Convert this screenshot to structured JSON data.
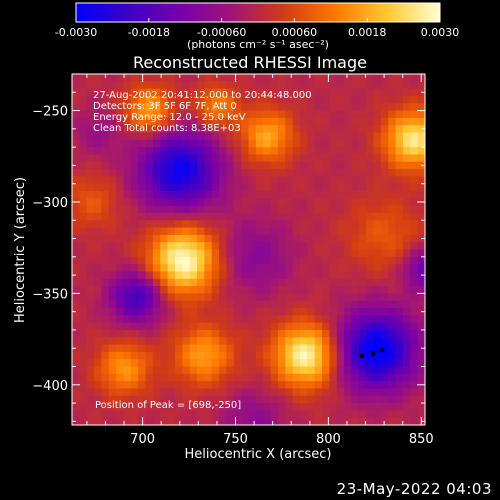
{
  "chart_data": {
    "type": "heatmap",
    "title": "Reconstructed RHESSI Image",
    "xlabel": "Heliocentric X (arcsec)",
    "ylabel": "Heliocentric Y (arcsec)",
    "xlim": [
      662,
      852
    ],
    "ylim": [
      -422,
      -230
    ],
    "x_ticks": [
      700,
      750,
      800,
      850
    ],
    "y_ticks": [
      -250,
      -300,
      -350,
      -400
    ],
    "colorbar": {
      "label": "(photons cm⁻² s⁻¹ asec⁻²)",
      "range": [
        -0.003,
        0.003
      ],
      "ticks": [
        "-0.0030",
        "-0.0018",
        "-0.00060",
        "0.00060",
        "0.0018",
        "0.0030"
      ],
      "colormap": [
        "#0000ff",
        "#3c00c8",
        "#7800aa",
        "#a01478",
        "#d23c14",
        "#ff7800",
        "#ffc832",
        "#ffffd2"
      ]
    },
    "annotations": [
      "27-Aug-2002 20:41:12.000 to 20:44:48.000",
      "Detectors: 3F 5F 6F 7F, Att 0",
      "Energy Range: 12.0 - 25.0 keV",
      "Clean     Total counts: 8.38E+03"
    ],
    "peak_label": "Position of Peak = [698,-250]",
    "peak": [
      698,
      -250
    ],
    "sources": [
      {
        "x": 722,
        "y": -332,
        "amp": 0.003,
        "sigma": 13
      },
      {
        "x": 788,
        "y": -384,
        "amp": 0.0029,
        "sigma": 12
      },
      {
        "x": 846,
        "y": -266,
        "amp": 0.0026,
        "sigma": 11
      },
      {
        "x": 767,
        "y": -264,
        "amp": 0.0018,
        "sigma": 10
      },
      {
        "x": 704,
        "y": -250,
        "amp": 0.0018,
        "sigma": 9
      },
      {
        "x": 690,
        "y": -391,
        "amp": 0.0016,
        "sigma": 10
      },
      {
        "x": 733,
        "y": -384,
        "amp": 0.0017,
        "sigma": 11
      },
      {
        "x": 740,
        "y": -248,
        "amp": 0.0014,
        "sigma": 8
      },
      {
        "x": 830,
        "y": -318,
        "amp": 0.0008,
        "sigma": 14
      },
      {
        "x": 673,
        "y": -300,
        "amp": 0.0008,
        "sigma": 10
      },
      {
        "x": 720,
        "y": -283,
        "amp": -0.0028,
        "sigma": 15
      },
      {
        "x": 826,
        "y": -381,
        "amp": -0.0031,
        "sigma": 15
      },
      {
        "x": 697,
        "y": -352,
        "amp": -0.0021,
        "sigma": 10
      },
      {
        "x": 852,
        "y": -337,
        "amp": -0.0016,
        "sigma": 8
      },
      {
        "x": 760,
        "y": -330,
        "amp": -0.0009,
        "sigma": 14
      },
      {
        "x": 760,
        "y": -420,
        "amp": -0.0008,
        "sigma": 12
      },
      {
        "x": 676,
        "y": -262,
        "amp": -0.0006,
        "sigma": 9
      }
    ],
    "markers": [
      [
        818,
        -384
      ],
      [
        824,
        -383
      ],
      [
        829,
        -381
      ]
    ]
  },
  "footer": {
    "timestamp": "23-May-2022 04:03"
  }
}
